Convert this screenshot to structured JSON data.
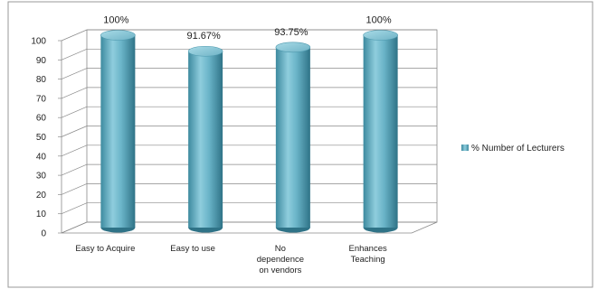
{
  "chart_data": {
    "type": "bar",
    "categories": [
      "Easy to Acquire",
      "Easy to use",
      "No dependence on vendors",
      "Enhances Teaching"
    ],
    "series": [
      {
        "name": "% Number of Lecturers",
        "values": [
          100,
          91.67,
          93.75,
          100
        ],
        "data_labels": [
          "100%",
          "91.67%",
          "93.75%",
          "100%"
        ],
        "color": "#5fa8bd"
      }
    ],
    "yticks": [
      "0",
      "10",
      "20",
      "30",
      "40",
      "50",
      "60",
      "70",
      "80",
      "90",
      "100"
    ],
    "ylim": [
      0,
      100
    ],
    "grid": true,
    "legend_position": "right",
    "style": "3d-cylinder"
  }
}
